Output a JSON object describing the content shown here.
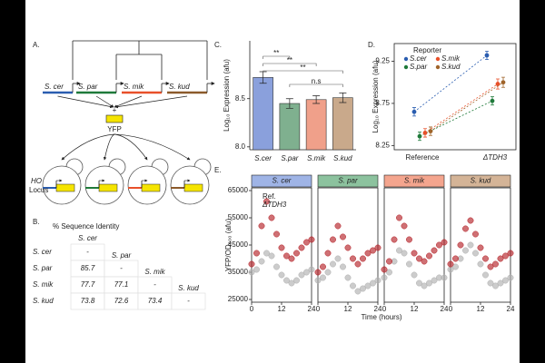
{
  "panel_labels": [
    "A.",
    "B.",
    "C.",
    "D.",
    "E."
  ],
  "diagram": {
    "genes": [
      {
        "label": "S. cer",
        "color": "#2a5db0"
      },
      {
        "label": "S. par",
        "color": "#1f7a3a"
      },
      {
        "label": "S. mik",
        "color": "#e8502a"
      },
      {
        "label": "S. kud",
        "color": "#8b5a2b"
      }
    ],
    "plus": "+",
    "reporter": "YFP",
    "locus": [
      "HO",
      "Locus"
    ]
  },
  "table": {
    "title": "% Sequence Identity",
    "col_header": "S. cer",
    "rows": [
      {
        "label": "S. cer",
        "cells": [
          "-"
        ],
        "diag_label": "S. par"
      },
      {
        "label": "S. par",
        "cells": [
          "85.7",
          "-"
        ],
        "diag_label": "S. mik"
      },
      {
        "label": "S. mik",
        "cells": [
          "77.7",
          "77.1",
          "-"
        ],
        "diag_label": "S. kud"
      },
      {
        "label": "S. kud",
        "cells": [
          "73.8",
          "72.6",
          "73.4",
          "-"
        ]
      }
    ]
  },
  "chart_data": [
    {
      "type": "bar",
      "ylabel": "Log₁₀ Expression (afu)",
      "categories": [
        "S.cer",
        "S.par",
        "S.mik",
        "S.kud"
      ],
      "values": [
        8.72,
        8.45,
        8.49,
        8.51
      ],
      "errors": [
        0.06,
        0.05,
        0.04,
        0.05
      ],
      "colors": [
        "#8aa0dc",
        "#7fb08f",
        "#f0a08a",
        "#c9a98b"
      ],
      "ylim": [
        7.97,
        9.1
      ],
      "yticks": [
        {
          "value": 8,
          "label": "8.0"
        },
        {
          "value": 8.5,
          "label": "8.5"
        }
      ],
      "annotations": [
        "**",
        "**",
        "**",
        "n.s"
      ]
    },
    {
      "type": "dot",
      "ylabel": "Log₁₀ Expression (afu)",
      "categories": [
        "Reference",
        "ΔTDH3"
      ],
      "legend_title": "Reporter",
      "series": [
        {
          "name": "S.cer",
          "color": "#2a5db0",
          "values": [
            8.65,
            9.32
          ],
          "errors": [
            0.05,
            0.05
          ]
        },
        {
          "name": "S.par",
          "color": "#1f7a3a",
          "values": [
            8.36,
            8.78
          ],
          "errors": [
            0.05,
            0.05
          ]
        },
        {
          "name": "S.mik",
          "color": "#e8502a",
          "values": [
            8.4,
            8.98
          ],
          "errors": [
            0.05,
            0.06
          ]
        },
        {
          "name": "S.kud",
          "color": "#a0642a",
          "values": [
            8.42,
            9.0
          ],
          "errors": [
            0.05,
            0.06
          ]
        }
      ],
      "ylim": [
        8.2,
        9.46
      ],
      "yticks": [
        8.25,
        8.75,
        9.25
      ]
    },
    {
      "type": "scatter",
      "title": "S. cer",
      "header_color": "#9fb4e6",
      "xlabel": "Time (hours)",
      "ylabel": "YFP/OD₆₀₀ (afu)",
      "x": [
        0,
        2,
        4,
        6,
        8,
        10,
        12,
        14,
        16,
        18,
        20,
        22,
        24
      ],
      "xlim": [
        0,
        24
      ],
      "xticks": [
        0,
        12,
        24
      ],
      "ylim": [
        24000,
        66000
      ],
      "yticks": [
        25000,
        35000,
        45000,
        55000,
        65000
      ],
      "series": [
        {
          "name": "Ref.",
          "color": "#b0b0b0",
          "values": [
            35000,
            36000,
            39000,
            42000,
            41000,
            37000,
            34000,
            32000,
            31000,
            32000,
            34000,
            35000,
            36000
          ]
        },
        {
          "name": "ΔTDH3",
          "color": "#b5242a",
          "values": [
            38000,
            42000,
            52000,
            61000,
            55000,
            49000,
            44000,
            41000,
            40000,
            42000,
            44000,
            46000,
            47000
          ]
        }
      ]
    },
    {
      "type": "scatter",
      "title": "S. par",
      "header_color": "#8cc29e",
      "x": [
        0,
        2,
        4,
        6,
        8,
        10,
        12,
        14,
        16,
        18,
        20,
        22,
        24
      ],
      "xlim": [
        0,
        24
      ],
      "xticks": [
        0,
        12,
        24
      ],
      "ylim": [
        24000,
        66000
      ],
      "series": [
        {
          "color": "#b0b0b0",
          "values": [
            32000,
            33000,
            35000,
            38000,
            40000,
            37000,
            33000,
            30000,
            28000,
            29000,
            30000,
            31000,
            32000
          ]
        },
        {
          "color": "#b5242a",
          "values": [
            35000,
            37000,
            42000,
            47000,
            52000,
            48000,
            44000,
            40000,
            38000,
            40000,
            42000,
            43000,
            44000
          ]
        }
      ]
    },
    {
      "type": "scatter",
      "title": "S. mik",
      "header_color": "#f4a58e",
      "x": [
        0,
        2,
        4,
        6,
        8,
        10,
        12,
        14,
        16,
        18,
        20,
        22,
        24
      ],
      "xlim": [
        0,
        24
      ],
      "xticks": [
        0,
        12,
        24
      ],
      "ylim": [
        24000,
        66000
      ],
      "series": [
        {
          "color": "#b0b0b0",
          "values": [
            33000,
            35000,
            39000,
            43000,
            42000,
            38000,
            34000,
            31000,
            30000,
            31000,
            32000,
            33000,
            33000
          ]
        },
        {
          "color": "#b5242a",
          "values": [
            36000,
            39000,
            47000,
            55000,
            52000,
            47000,
            42000,
            40000,
            39000,
            41000,
            43000,
            45000,
            46000
          ]
        }
      ]
    },
    {
      "type": "scatter",
      "title": "S. kud",
      "header_color": "#d4b497",
      "x": [
        0,
        2,
        4,
        6,
        8,
        10,
        12,
        14,
        16,
        18,
        20,
        22,
        24
      ],
      "xlim": [
        0,
        24
      ],
      "xticks": [
        0,
        12,
        24
      ],
      "ylim": [
        24000,
        66000
      ],
      "series": [
        {
          "color": "#b0b0b0",
          "values": [
            36000,
            37000,
            40000,
            43000,
            45000,
            42000,
            38000,
            34000,
            31000,
            30000,
            31000,
            32000,
            33000
          ]
        },
        {
          "color": "#b5242a",
          "values": [
            38000,
            40000,
            45000,
            51000,
            54000,
            49000,
            44000,
            40000,
            37000,
            38000,
            40000,
            41000,
            42000
          ]
        }
      ]
    }
  ]
}
